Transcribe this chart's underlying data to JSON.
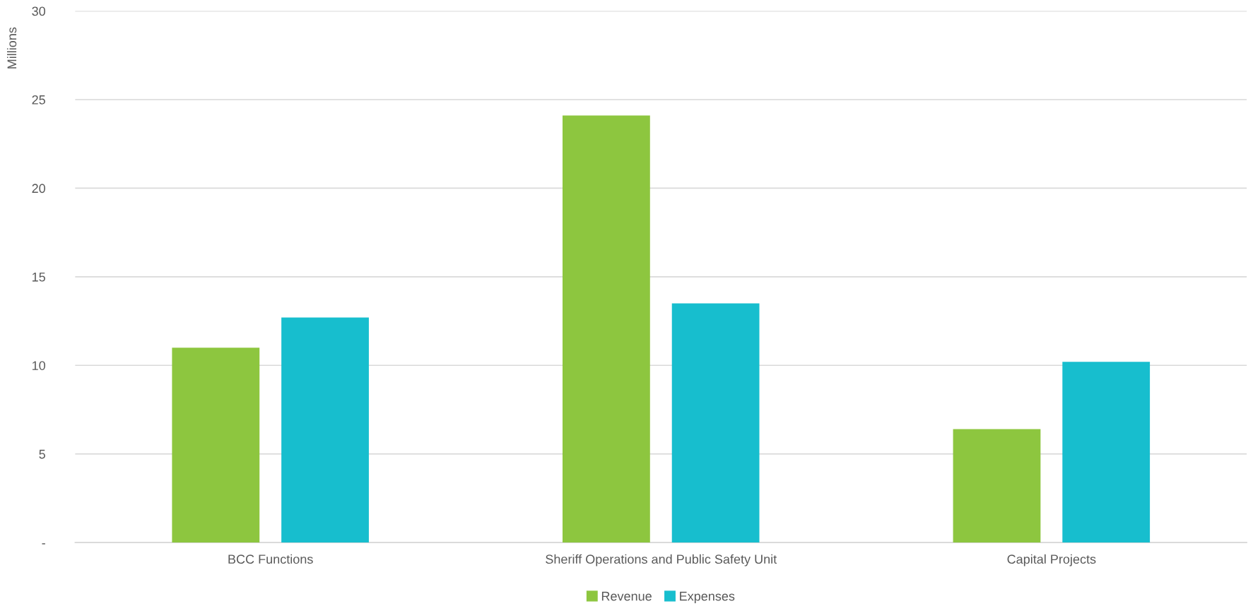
{
  "chart_data": {
    "type": "bar",
    "ylabel": "Millions",
    "categories": [
      "BCC Functions",
      "Sheriff Operations and Public Safety Unit",
      "Capital Projects"
    ],
    "series": [
      {
        "name": "Revenue",
        "color": "#8dc63f",
        "values": [
          11.0,
          24.1,
          6.4
        ]
      },
      {
        "name": "Expenses",
        "color": "#17bece",
        "values": [
          12.7,
          13.5,
          10.2
        ]
      }
    ],
    "ylim": [
      0,
      30
    ],
    "yticks": [
      {
        "value": 0,
        "label": "-"
      },
      5,
      10,
      15,
      20,
      25,
      30
    ],
    "grid": "y",
    "legend": "bottom"
  }
}
